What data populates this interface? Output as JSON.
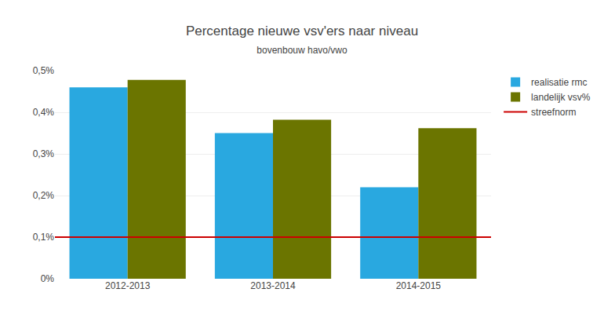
{
  "chart_data": {
    "type": "bar",
    "title": "Percentage nieuwe vsv'ers naar niveau",
    "subtitle": "bovenbouw havo/vwo",
    "categories": [
      "2012-2013",
      "2013-2014",
      "2014-2015"
    ],
    "series": [
      {
        "name": "realisatie rmc",
        "color": "#29A8E0",
        "values": [
          0.0046,
          0.0035,
          0.0022
        ]
      },
      {
        "name": "landelijk vsv%",
        "color": "#6B7500",
        "values": [
          0.00478,
          0.00382,
          0.00362
        ]
      },
      {
        "name": "streefnorm",
        "type": "hline",
        "color": "#CC0000",
        "value": 0.001
      }
    ],
    "ylim": [
      0,
      0.005
    ],
    "yticks": [
      {
        "value": 0,
        "label": "0%"
      },
      {
        "value": 0.001,
        "label": "0,1%"
      },
      {
        "value": 0.002,
        "label": "0,2%"
      },
      {
        "value": 0.003,
        "label": "0,3%"
      },
      {
        "value": 0.004,
        "label": "0,4%"
      },
      {
        "value": 0.005,
        "label": "0,5%"
      }
    ],
    "grid": true,
    "legend": "right"
  }
}
